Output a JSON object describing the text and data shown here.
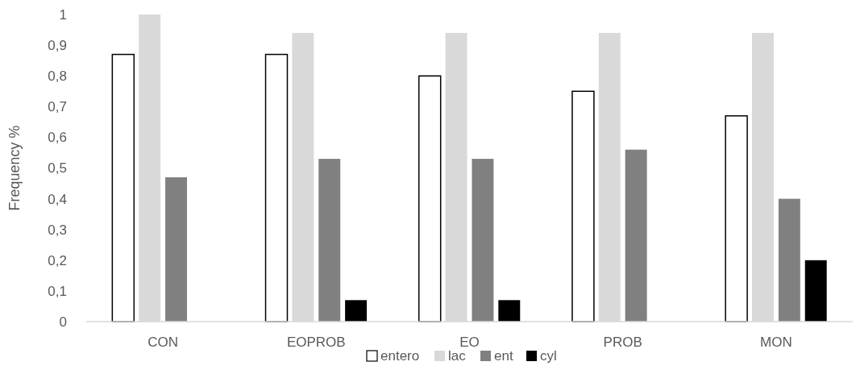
{
  "chart_data": {
    "type": "bar",
    "ylabel": "Frequency %",
    "categories": [
      "CON",
      "EOPROB",
      "EO",
      "PROB",
      "MON"
    ],
    "series": [
      {
        "name": "entero",
        "color": "#ffffff",
        "values": [
          0.87,
          0.87,
          0.8,
          0.75,
          0.67
        ]
      },
      {
        "name": "lac",
        "color": "#d9d9d9",
        "values": [
          1,
          0.94,
          0.94,
          0.94,
          0.94
        ]
      },
      {
        "name": "ent",
        "color": "#808080",
        "values": [
          0.47,
          0.53,
          0.53,
          0.56,
          0.4
        ]
      },
      {
        "name": "cyl",
        "color": "#000000",
        "values": [
          0,
          0.07,
          0.07,
          0,
          0.2
        ]
      }
    ],
    "ylim": [
      0,
      1
    ],
    "yticks": [
      0,
      {
        "value": 0.1,
        "label": "0,1"
      },
      {
        "value": 0.2,
        "label": "0,2"
      },
      {
        "value": 0.3,
        "label": "0,3"
      },
      {
        "value": 0.4,
        "label": "0,4"
      },
      {
        "value": 0.5,
        "label": "0,5"
      },
      {
        "value": 0.6,
        "label": "0,6"
      },
      {
        "value": 0.7,
        "label": "0,7"
      },
      {
        "value": 0.8,
        "label": "0,8"
      },
      {
        "value": 0.9,
        "label": "0,9"
      },
      1
    ],
    "legend": "bottom",
    "grid": false
  }
}
